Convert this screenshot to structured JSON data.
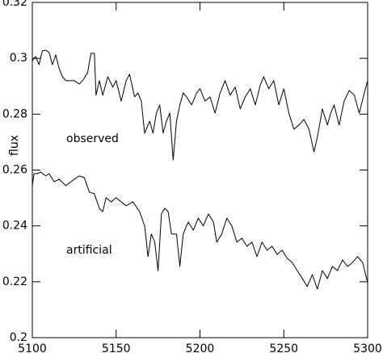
{
  "chart_data": {
    "type": "line",
    "y_label": "flux",
    "annotations": [
      "observed",
      "artificial"
    ],
    "xlim": [
      5100,
      5300
    ],
    "xticks": [
      5100,
      5150,
      5200,
      5250,
      5300
    ],
    "ylim": [
      0.2,
      0.32
    ],
    "yticks": [
      0.2,
      0.22,
      0.24,
      0.26,
      0.28,
      0.3,
      0.32
    ],
    "series": [
      {
        "color": "#000000",
        "x": [
          5100,
          5102,
          5104,
          5106,
          5108,
          5110,
          5112,
          5114,
          5116,
          5118,
          5120,
          5125,
          5128,
          5130,
          5133,
          5135,
          5137,
          5138,
          5140,
          5142,
          5145,
          5148,
          5150,
          5153,
          5156,
          5158,
          5161,
          5163,
          5165,
          5167,
          5170,
          5172,
          5174,
          5176,
          5178,
          5180,
          5182,
          5184,
          5186,
          5188,
          5190,
          5192,
          5195,
          5198,
          5200,
          5203,
          5206,
          5209,
          5212,
          5215,
          5218,
          5221,
          5224,
          5227,
          5230,
          5233,
          5236,
          5238,
          5241,
          5244,
          5247,
          5250,
          5253,
          5256,
          5259,
          5262,
          5265,
          5268,
          5270,
          5273,
          5276,
          5278,
          5280,
          5283,
          5286,
          5289,
          5292,
          5295,
          5298,
          5300
        ],
        "values": [
          0.2992,
          0.3006,
          0.2977,
          0.3027,
          0.3029,
          0.3021,
          0.2977,
          0.3012,
          0.2963,
          0.2934,
          0.292,
          0.292,
          0.2908,
          0.292,
          0.2949,
          0.3018,
          0.3018,
          0.2868,
          0.292,
          0.2868,
          0.2934,
          0.2897,
          0.292,
          0.2847,
          0.292,
          0.2943,
          0.2862,
          0.2876,
          0.2847,
          0.2732,
          0.2775,
          0.2732,
          0.2804,
          0.2833,
          0.2732,
          0.2775,
          0.2804,
          0.2636,
          0.2775,
          0.2833,
          0.2876,
          0.2862,
          0.2833,
          0.2876,
          0.2891,
          0.2847,
          0.2862,
          0.2804,
          0.2876,
          0.292,
          0.2868,
          0.2897,
          0.2819,
          0.2862,
          0.2891,
          0.2833,
          0.2905,
          0.2934,
          0.2891,
          0.292,
          0.2833,
          0.2891,
          0.2804,
          0.2746,
          0.2761,
          0.2781,
          0.2746,
          0.2665,
          0.2717,
          0.2819,
          0.2761,
          0.2804,
          0.2833,
          0.2761,
          0.2847,
          0.2885,
          0.2868,
          0.2804,
          0.2876,
          0.292
        ]
      },
      {
        "color": "#000000",
        "x": [
          5100,
          5101,
          5103,
          5105,
          5108,
          5110,
          5113,
          5116,
          5120,
          5125,
          5128,
          5131,
          5134,
          5137,
          5140,
          5142,
          5144,
          5147,
          5150,
          5153,
          5156,
          5160,
          5164,
          5167,
          5169,
          5171,
          5173,
          5175,
          5177,
          5179,
          5181,
          5183,
          5186,
          5188,
          5190,
          5193,
          5196,
          5199,
          5202,
          5205,
          5208,
          5210,
          5213,
          5216,
          5219,
          5222,
          5225,
          5228,
          5231,
          5234,
          5237,
          5240,
          5243,
          5246,
          5249,
          5252,
          5255,
          5258,
          5261,
          5264,
          5267,
          5270,
          5273,
          5276,
          5279,
          5282,
          5285,
          5288,
          5291,
          5294,
          5297,
          5300
        ],
        "values": [
          0.2544,
          0.2587,
          0.2587,
          0.2593,
          0.2579,
          0.2587,
          0.2558,
          0.2567,
          0.2544,
          0.2567,
          0.2579,
          0.2573,
          0.2521,
          0.2515,
          0.2463,
          0.2451,
          0.2501,
          0.2486,
          0.2501,
          0.2486,
          0.2472,
          0.2486,
          0.2451,
          0.24,
          0.229,
          0.2371,
          0.2342,
          0.224,
          0.2443,
          0.2463,
          0.2451,
          0.2371,
          0.2371,
          0.2255,
          0.2371,
          0.2414,
          0.2385,
          0.2428,
          0.24,
          0.2443,
          0.2414,
          0.2342,
          0.2371,
          0.2428,
          0.24,
          0.2342,
          0.2356,
          0.2327,
          0.2342,
          0.229,
          0.2342,
          0.2313,
          0.2327,
          0.2298,
          0.2313,
          0.2284,
          0.2269,
          0.224,
          0.2212,
          0.2183,
          0.2226,
          0.2174,
          0.224,
          0.2212,
          0.2255,
          0.224,
          0.2278,
          0.2255,
          0.2269,
          0.229,
          0.2269,
          0.2197
        ]
      }
    ]
  }
}
